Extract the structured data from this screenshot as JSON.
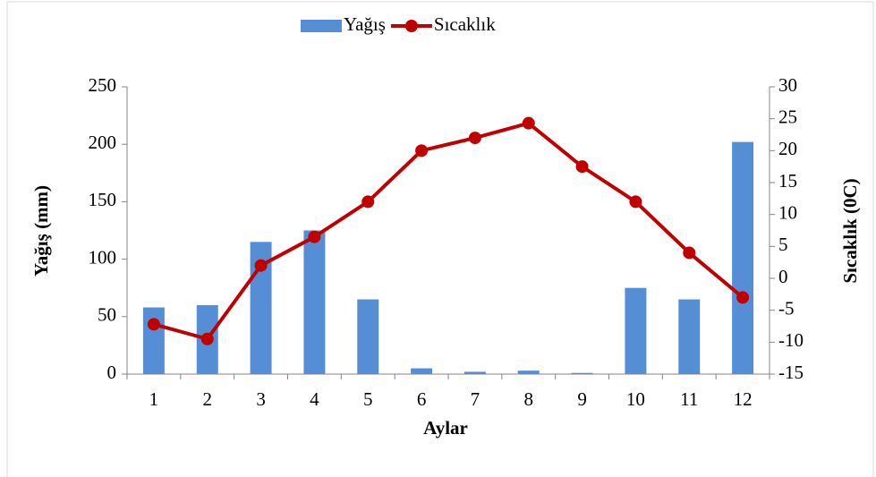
{
  "chart_data": {
    "type": "bar_line",
    "categories": [
      "1",
      "2",
      "3",
      "4",
      "5",
      "6",
      "7",
      "8",
      "9",
      "10",
      "11",
      "12"
    ],
    "series": [
      {
        "name": "Yağış",
        "type": "bar",
        "color": "#558ed5",
        "values": [
          58,
          60,
          115,
          125,
          65,
          5,
          2,
          3,
          1,
          75,
          65,
          202
        ]
      },
      {
        "name": "Sıcaklık",
        "type": "line",
        "axis": "y2",
        "color": "#c00000",
        "values": [
          -7.2,
          -9.5,
          2,
          6.5,
          12,
          20,
          22,
          24.3,
          17.5,
          12,
          4,
          -3
        ]
      }
    ],
    "xlabel": "Aylar",
    "ylabel": "Yağış (mm)",
    "y2label": "Sıcaklık (0C)",
    "ylim": [
      0,
      250
    ],
    "yticks": [
      0,
      50,
      100,
      150,
      200,
      250
    ],
    "y2lim": [
      -15,
      30
    ],
    "y2ticks": [
      -15,
      -10,
      -5,
      0,
      5,
      10,
      15,
      20,
      25,
      30
    ],
    "legend": "top"
  }
}
